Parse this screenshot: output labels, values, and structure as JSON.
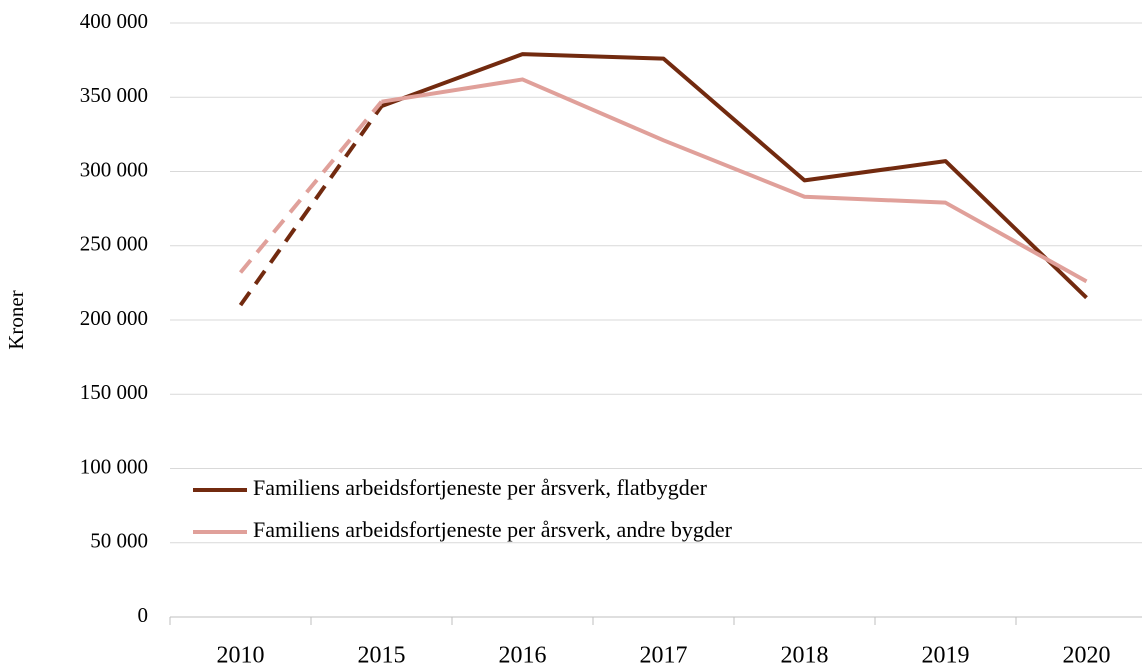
{
  "chart_data": {
    "type": "line",
    "y_label": "Kroner",
    "categories": [
      "2010",
      "2015",
      "2016",
      "2017",
      "2018",
      "2019",
      "2020"
    ],
    "series": [
      {
        "name": "Familiens arbeidsfortjeneste per årsverk, flatbygder",
        "color": "#722a0f",
        "dashed_segments": [
          0
        ],
        "values": [
          210000,
          344000,
          379000,
          376000,
          294000,
          307000,
          215000
        ]
      },
      {
        "name": "Familiens arbeidsfortjeneste per årsverk, andre bygder",
        "color": "#e0a09a",
        "dashed_segments": [
          0
        ],
        "values": [
          232000,
          347000,
          362000,
          321000,
          283000,
          279000,
          226000
        ]
      }
    ],
    "ylim": [
      0,
      400000
    ],
    "yticks": [
      0,
      {
        "value": 50000,
        "label": "50 000"
      },
      {
        "value": 100000,
        "label": "100 000"
      },
      {
        "value": 150000,
        "label": "150 000"
      },
      {
        "value": 200000,
        "label": "200 000"
      },
      {
        "value": 250000,
        "label": "250 000"
      },
      {
        "value": 300000,
        "label": "300 000"
      },
      {
        "value": 350000,
        "label": "350 000"
      },
      {
        "value": 400000,
        "label": "400 000"
      }
    ],
    "grid": true
  }
}
